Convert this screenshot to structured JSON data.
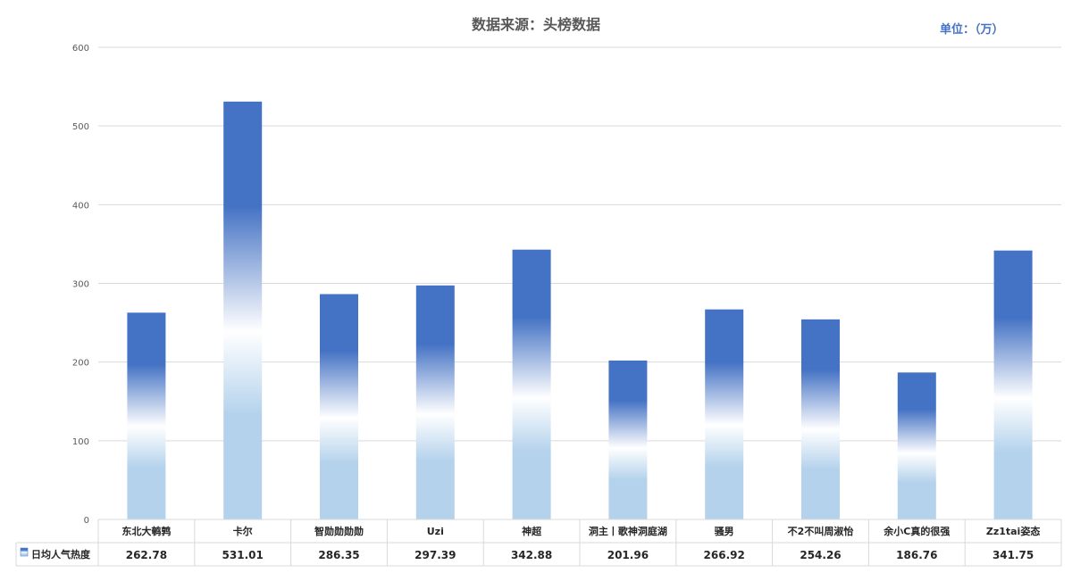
{
  "chart_data": {
    "type": "bar",
    "title": "数据来源：头榜数据",
    "unit_label": "单位：（万）",
    "categories": [
      "东北大鹌鹑",
      "卡尔",
      "智勋勋勋勋",
      "Uzi",
      "神超",
      "洞主丨歌神洞庭湖",
      "骚男",
      "不2不叫周淑怡",
      "余小C真的很强",
      "Zz1tai姿态"
    ],
    "series": [
      {
        "name": "日均人气热度",
        "values": [
          262.78,
          531.01,
          286.35,
          297.39,
          342.88,
          201.96,
          266.92,
          254.26,
          186.76,
          341.75
        ]
      }
    ],
    "value_labels": [
      "262.78",
      "531.01",
      "286.35",
      "297.39",
      "342.88",
      "201.96",
      "266.92",
      "254.26",
      "186.76",
      "341.75"
    ],
    "ylim": [
      0,
      600
    ],
    "yticks": [
      "0",
      "100",
      "200",
      "300",
      "400",
      "500",
      "600"
    ],
    "grid": true,
    "legend": "data-table-left",
    "colors": {
      "top": "#4472c4",
      "middle": "#ffffff",
      "bottom": "#b4d2ec",
      "grid": "#d9d9d9",
      "axis_text": "#595959"
    }
  }
}
